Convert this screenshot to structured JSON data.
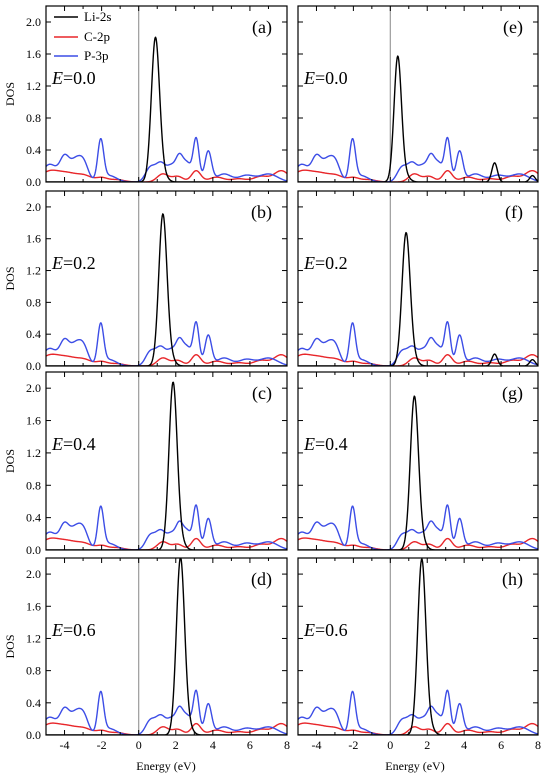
{
  "chart_data": {
    "type": "line",
    "xlabel": "Energy (eV)",
    "ylabel": "DOS",
    "xlim": [
      -5,
      8
    ],
    "ylim": [
      0,
      2.2
    ],
    "xticks": [
      -4,
      -2,
      0,
      2,
      4,
      6,
      8
    ],
    "yticks": [
      0.0,
      0.4,
      0.8,
      1.2,
      1.6,
      2.0
    ],
    "legend": {
      "placement": "top-left",
      "entries": [
        "Li-2s",
        "C-2p",
        "P-3p"
      ]
    },
    "colors": {
      "Li-2s": "#000000",
      "C-2p": "#e8262a",
      "P-3p": "#3c4de6",
      "zero_line": "#9a9a9a"
    },
    "panels": [
      {
        "label": "(a)",
        "field": "E=0.0",
        "li_peak": {
          "x": 0.9,
          "y": 1.77,
          "w": 0.22
        }
      },
      {
        "label": "(e)",
        "field": "E=0.0",
        "li_peak": {
          "x": 0.4,
          "y": 1.54,
          "w": 0.2
        },
        "li_extra": [
          [
            5.65,
            0.24,
            0.15
          ],
          [
            7.7,
            0.08,
            0.15
          ]
        ]
      },
      {
        "label": "(b)",
        "field": "E=0.2",
        "li_peak": {
          "x": 1.3,
          "y": 1.87,
          "w": 0.22
        }
      },
      {
        "label": "(f)",
        "field": "E=0.2",
        "li_peak": {
          "x": 0.85,
          "y": 1.64,
          "w": 0.22
        },
        "li_extra": [
          [
            5.65,
            0.15,
            0.15
          ],
          [
            7.7,
            0.08,
            0.15
          ]
        ]
      },
      {
        "label": "(c)",
        "field": "E=0.4",
        "li_peak": {
          "x": 1.85,
          "y": 2.03,
          "w": 0.22
        }
      },
      {
        "label": "(g)",
        "field": "E=0.4",
        "li_peak": {
          "x": 1.3,
          "y": 1.86,
          "w": 0.22
        }
      },
      {
        "label": "(d)",
        "field": "E=0.6",
        "li_peak": {
          "x": 2.25,
          "y": 2.16,
          "w": 0.22
        }
      },
      {
        "label": "(h)",
        "field": "E=0.6",
        "li_peak": {
          "x": 1.7,
          "y": 2.14,
          "w": 0.22
        }
      }
    ],
    "p3p_features": [
      [
        -4.8,
        0.22,
        0.4
      ],
      [
        -4.0,
        0.28,
        0.25
      ],
      [
        -3.4,
        0.26,
        0.3
      ],
      [
        -2.95,
        0.2,
        0.25
      ],
      [
        -2.05,
        0.5,
        0.16
      ],
      [
        -1.6,
        0.08,
        0.4
      ],
      [
        0.6,
        0.16,
        0.25
      ],
      [
        1.2,
        0.24,
        0.3
      ],
      [
        1.75,
        0.14,
        0.2
      ],
      [
        2.2,
        0.33,
        0.22
      ],
      [
        2.65,
        0.2,
        0.2
      ],
      [
        3.1,
        0.54,
        0.16
      ],
      [
        3.75,
        0.38,
        0.18
      ],
      [
        4.6,
        0.1,
        0.4
      ],
      [
        5.8,
        0.08,
        0.4
      ],
      [
        7.0,
        0.1,
        0.5
      ]
    ],
    "c2p_features": [
      [
        -4.8,
        0.13,
        0.5
      ],
      [
        -3.8,
        0.1,
        0.5
      ],
      [
        -2.9,
        0.07,
        0.4
      ],
      [
        -2.0,
        0.05,
        0.3
      ],
      [
        -1.2,
        0.03,
        0.4
      ],
      [
        1.3,
        0.1,
        0.3
      ],
      [
        2.1,
        0.07,
        0.3
      ],
      [
        3.1,
        0.14,
        0.25
      ],
      [
        4.2,
        0.06,
        0.4
      ],
      [
        5.4,
        0.04,
        0.4
      ],
      [
        6.6,
        0.07,
        0.4
      ],
      [
        7.7,
        0.14,
        0.4
      ]
    ]
  }
}
